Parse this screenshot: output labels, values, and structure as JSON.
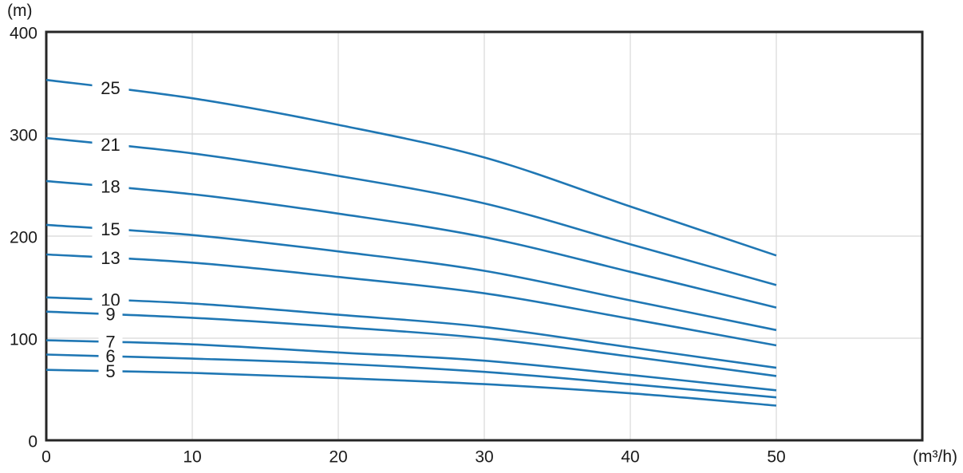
{
  "chart_data": {
    "type": "line",
    "title": "",
    "xlabel": "(m³/h)",
    "ylabel": "(m)",
    "xlim": [
      0,
      60
    ],
    "ylim": [
      0,
      400
    ],
    "x_ticks": [
      0,
      10,
      20,
      30,
      40,
      50
    ],
    "y_ticks": [
      0,
      100,
      200,
      300,
      400
    ],
    "grid": true,
    "legend_position": "inline-curve-labels",
    "x": [
      0,
      10,
      20,
      30,
      40,
      50
    ],
    "series": [
      {
        "label": "25",
        "values": [
          353,
          335,
          309,
          277,
          229,
          181
        ]
      },
      {
        "label": "21",
        "values": [
          296,
          281,
          259,
          232,
          192,
          152
        ]
      },
      {
        "label": "18",
        "values": [
          254,
          241,
          222,
          199,
          165,
          130
        ]
      },
      {
        "label": "15",
        "values": [
          211,
          201,
          185,
          166,
          137,
          108
        ]
      },
      {
        "label": "13",
        "values": [
          182,
          174,
          160,
          144,
          119,
          93
        ]
      },
      {
        "label": "10",
        "values": [
          140,
          134,
          123,
          111,
          91,
          71
        ]
      },
      {
        "label": "9",
        "values": [
          126,
          120,
          111,
          100,
          82,
          63
        ]
      },
      {
        "label": "7",
        "values": [
          98,
          94,
          86,
          78,
          64,
          49
        ]
      },
      {
        "label": "6",
        "values": [
          84,
          80,
          75,
          67,
          55,
          42
        ]
      },
      {
        "label": "5",
        "values": [
          69,
          66,
          61,
          55,
          46,
          34
        ]
      }
    ],
    "colors": {
      "line": "#1f77b4",
      "grid": "#d8d8d8",
      "axis": "#262626",
      "text": "#1a1a1a",
      "background": "#ffffff"
    }
  }
}
